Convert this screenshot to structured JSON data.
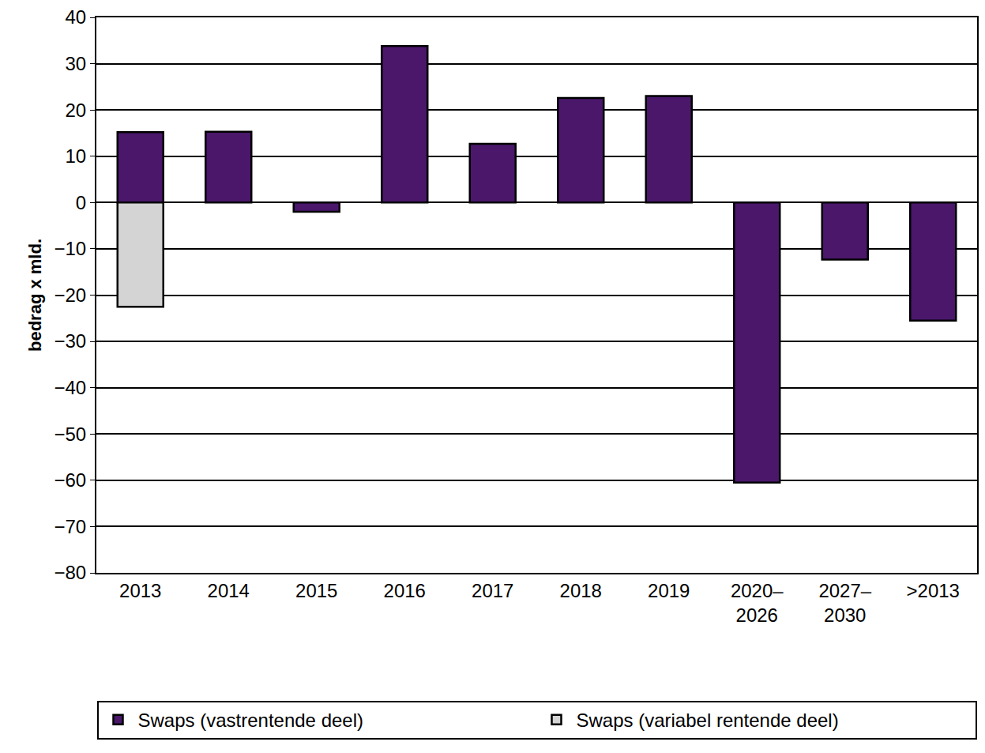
{
  "chart_data": {
    "type": "bar",
    "y_label": "bedrag x mld.",
    "categories": [
      "2013",
      "2014",
      "2015",
      "2016",
      "2017",
      "2018",
      "2019",
      "2020–2026",
      "2027–2030",
      ">2013"
    ],
    "series": [
      {
        "name": "Swaps (vastrentende deel)",
        "color": "#4a176b",
        "values": [
          15.2,
          15.3,
          -2,
          33.8,
          12.7,
          22.6,
          23,
          -60.5,
          -12.3,
          -25.5
        ]
      },
      {
        "name": "Swaps (variabel rentende deel)",
        "color": "#d4d4d4",
        "values": [
          -22.5,
          null,
          null,
          null,
          null,
          null,
          null,
          null,
          null,
          null
        ]
      }
    ],
    "stacked": true,
    "ylim": [
      -80,
      40
    ],
    "yticks": [
      -80,
      -70,
      -60,
      -50,
      -40,
      -30,
      -20,
      -10,
      0,
      10,
      20,
      30,
      40
    ],
    "grid": true,
    "legend": "bottom"
  }
}
